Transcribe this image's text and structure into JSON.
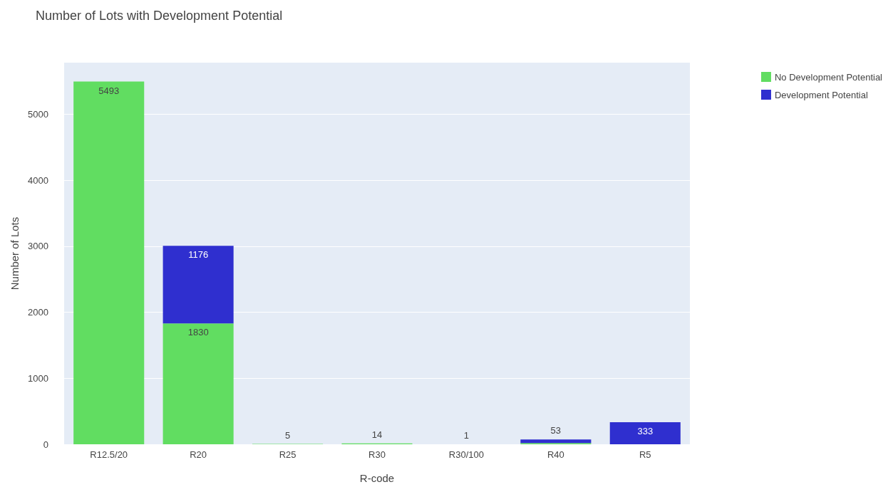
{
  "chart_data": {
    "type": "bar",
    "title": "Number of Lots with Development Potential",
    "xlabel": "R-code",
    "ylabel": "Number of Lots",
    "categories": [
      "R12.5/20",
      "R20",
      "R25",
      "R30",
      "R30/100",
      "R40",
      "R5"
    ],
    "stacked": true,
    "series": [
      {
        "name": "No Development Potential",
        "color": "#61dd61",
        "values": [
          5493,
          1830,
          5,
          14,
          1,
          20,
          null
        ],
        "value_labels": [
          "5493",
          "1830",
          "5",
          "14",
          "1",
          null,
          null
        ]
      },
      {
        "name": "Development Potential",
        "color": "#2f2fcf",
        "values": [
          null,
          1176,
          null,
          null,
          null,
          53,
          333
        ],
        "value_labels": [
          null,
          "1176",
          null,
          null,
          null,
          "53",
          "333"
        ]
      }
    ],
    "ylim": [
      0,
      5780
    ],
    "yticks": [
      0,
      1000,
      2000,
      3000,
      4000,
      5000
    ],
    "grid": "y",
    "legend": "top right"
  }
}
